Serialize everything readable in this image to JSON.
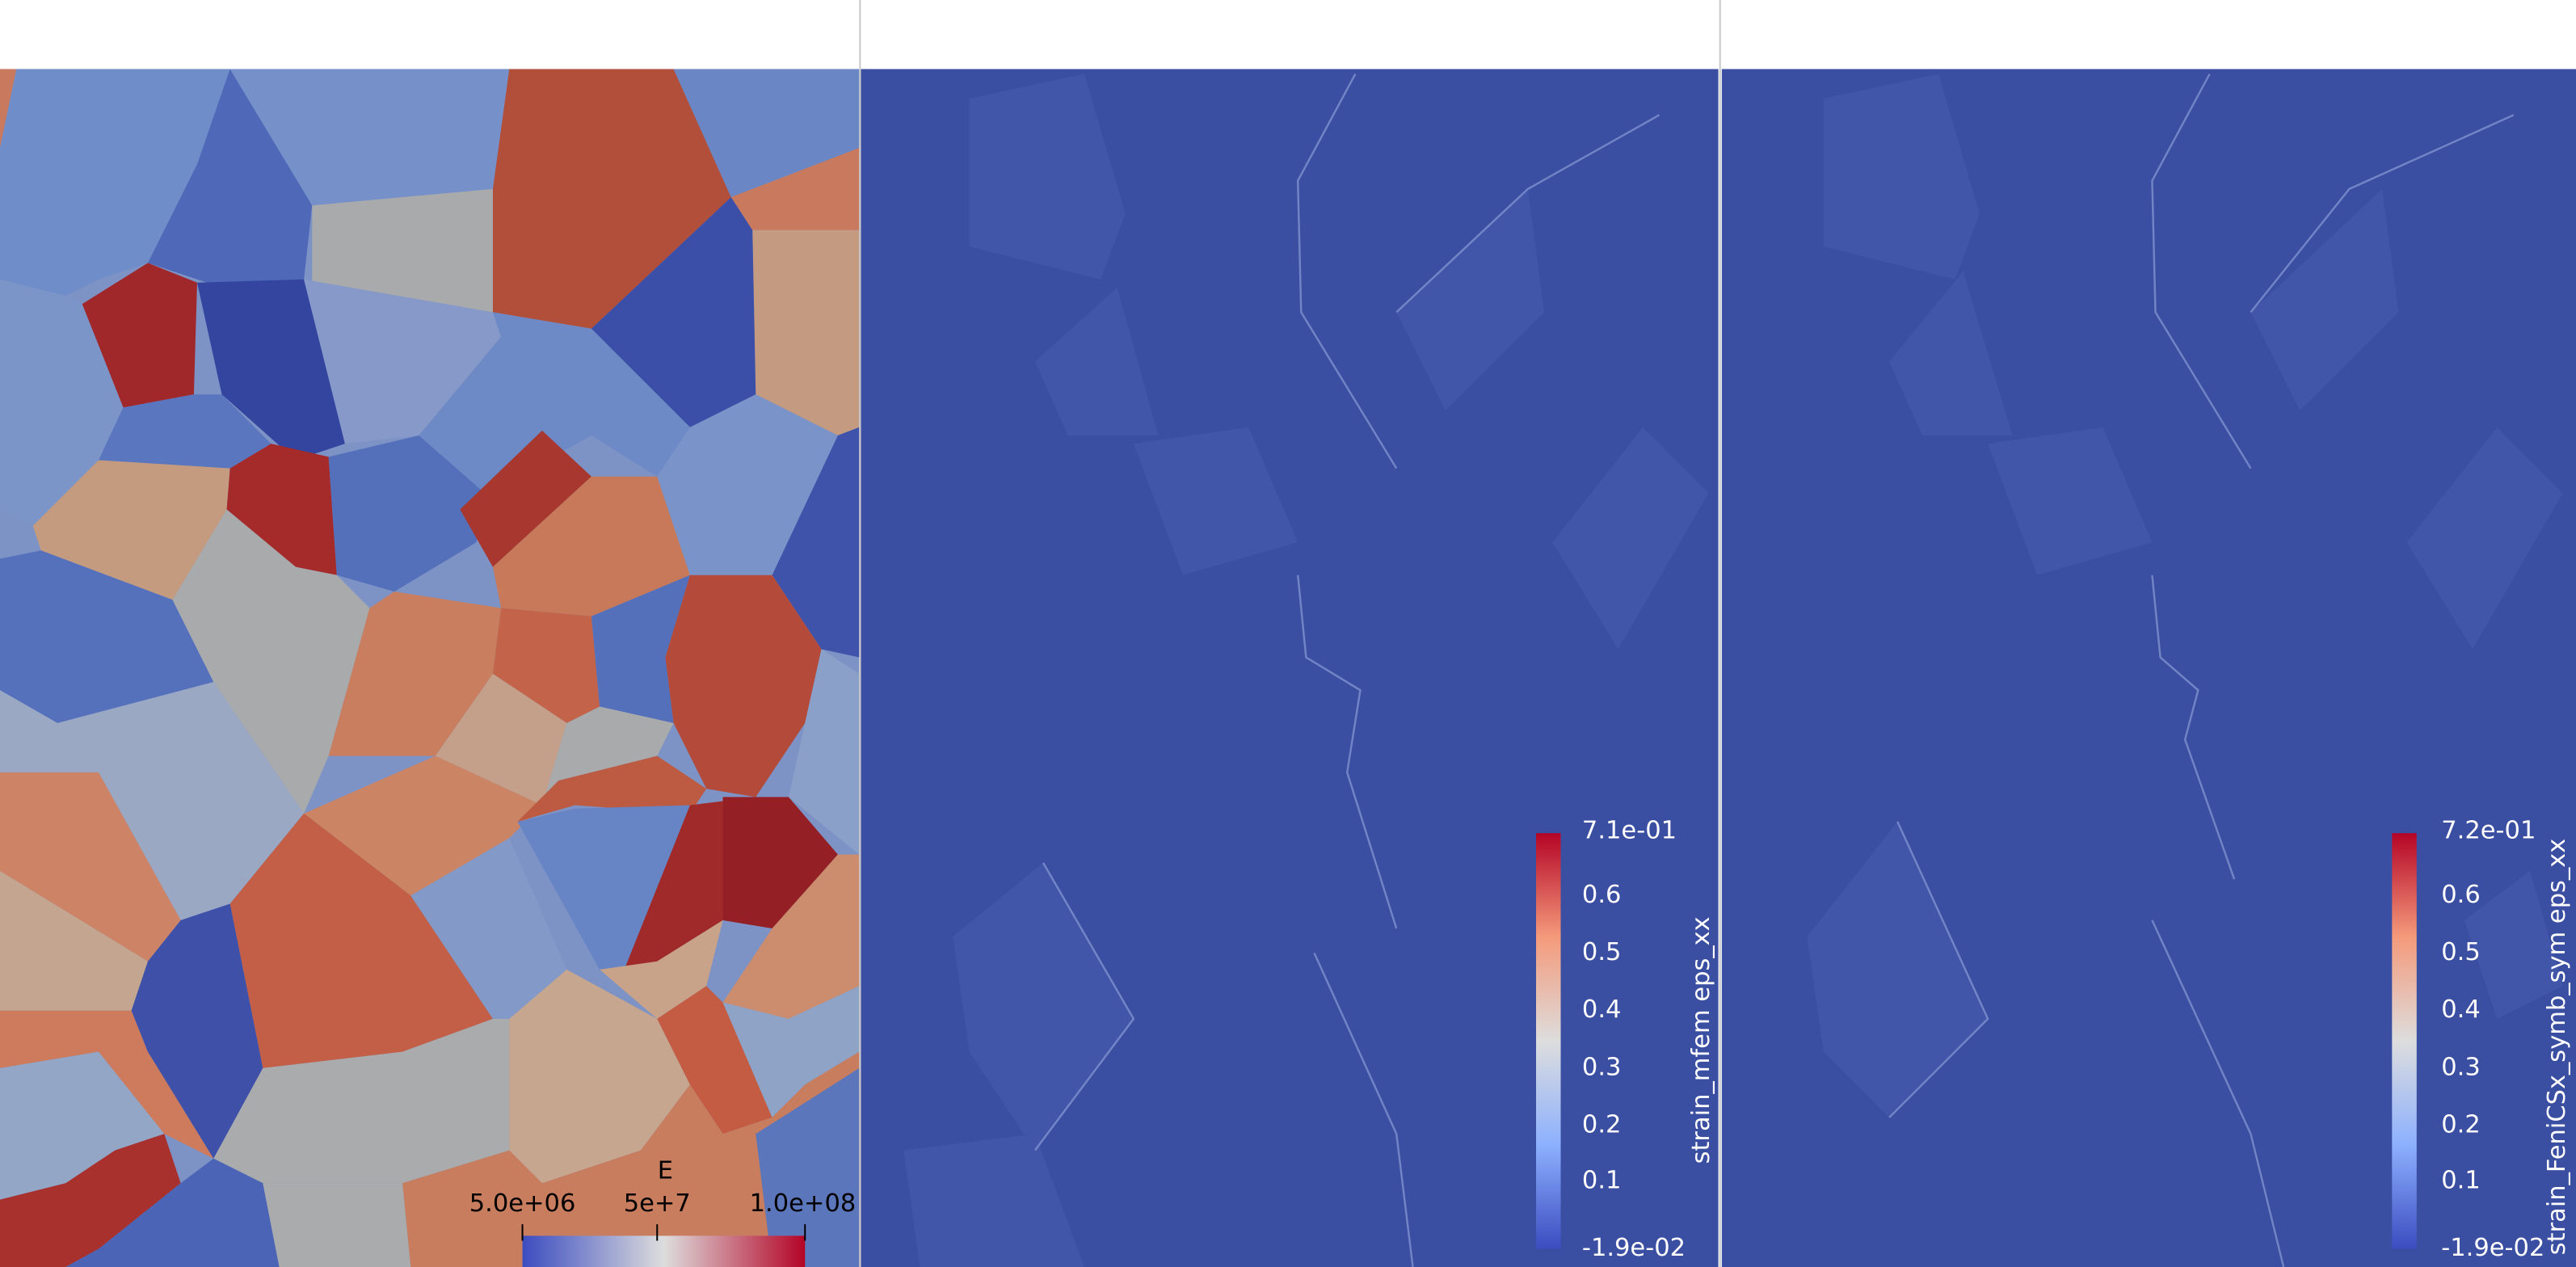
{
  "views": [
    {
      "colorbar": {
        "title": "E",
        "labels": [
          "5.0e+06",
          "5e+7",
          "1.0e+08"
        ]
      }
    },
    {
      "colorbar": {
        "title": "strain_mfem eps_xx",
        "labels": [
          "7.1e-01",
          "0.6",
          "0.5",
          "0.4",
          "0.3",
          "0.2",
          "0.1",
          "-1.9e-02"
        ]
      }
    },
    {
      "colorbar": {
        "title": "strain_FeniCSx_symb_sym eps_xx",
        "labels": [
          "7.2e-01",
          "0.6",
          "0.5",
          "0.4",
          "0.3",
          "0.2",
          "0.1",
          "-1.9e-02"
        ]
      }
    }
  ]
}
